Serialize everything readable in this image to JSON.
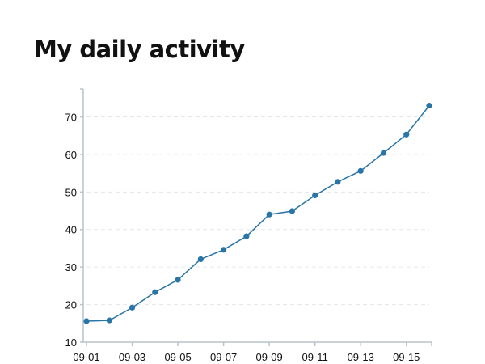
{
  "title": "My daily activity",
  "chart_data": {
    "type": "line",
    "title": "My daily activity",
    "xlabel": "",
    "ylabel": "",
    "x": [
      "09-01",
      "09-02",
      "09-03",
      "09-04",
      "09-05",
      "09-06",
      "09-07",
      "09-08",
      "09-09",
      "09-10",
      "09-11",
      "09-12",
      "09-13",
      "09-14",
      "09-15",
      "09-16"
    ],
    "x_tick_labels": [
      "09-01",
      "09-03",
      "09-05",
      "09-07",
      "09-09",
      "09-11",
      "09-13",
      "09-15"
    ],
    "series": [
      {
        "values": [
          15.6,
          15.8,
          19.2,
          23.3,
          26.6,
          32.1,
          34.6,
          38.2,
          44.0,
          44.9,
          49.1,
          52.7,
          55.6,
          60.4,
          65.3,
          73.0
        ]
      }
    ],
    "ylim": [
      10,
      77
    ],
    "y_ticks": [
      10,
      20,
      30,
      40,
      50,
      60,
      70
    ],
    "grid": "horizontal dashed",
    "colors": {
      "line": "#2a75a8",
      "point": "#2a75a8",
      "axis": "#b8c4cc",
      "grid": "#e3e7ea"
    }
  }
}
